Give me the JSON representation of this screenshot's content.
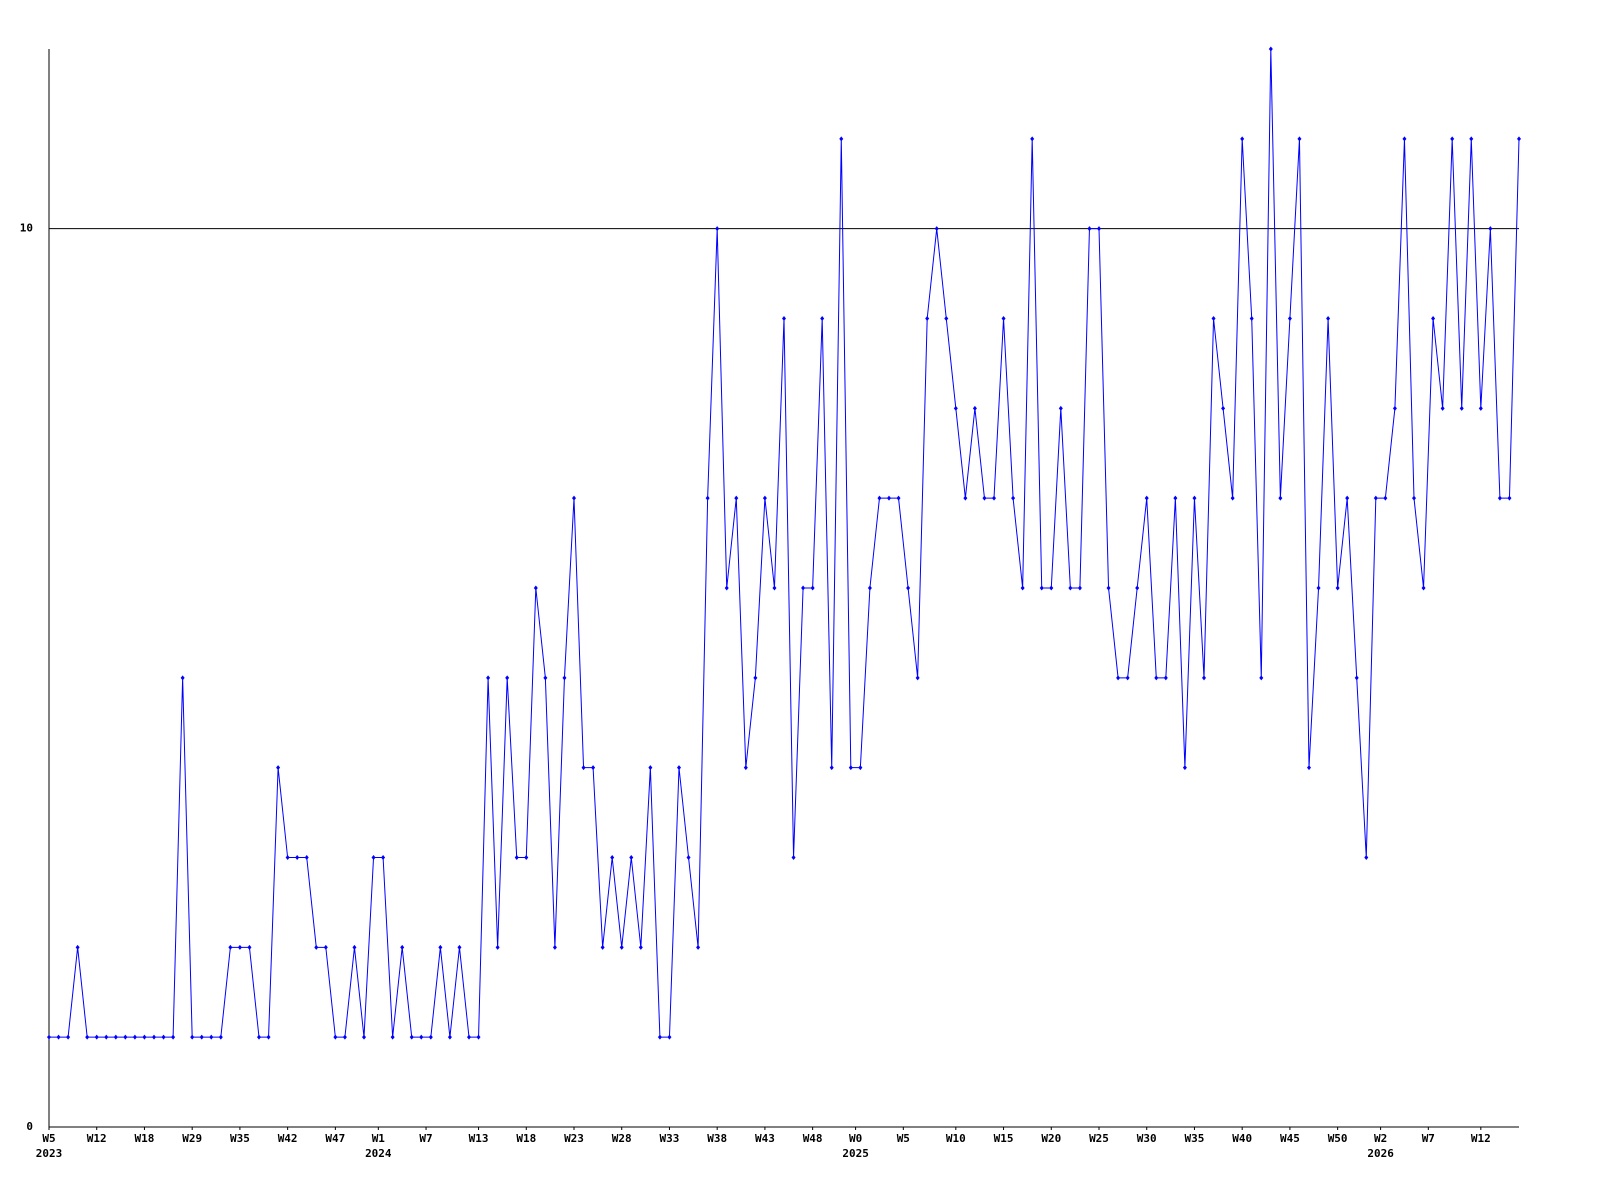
{
  "chart_data": {
    "type": "line",
    "color": "#0000ff",
    "grid": true,
    "marker": "diamond",
    "ylim": [
      0,
      12
    ],
    "yticks": [
      0,
      10
    ],
    "xlim": [
      0,
      154
    ],
    "xticks": [
      {
        "value": 0,
        "label": "W5"
      },
      {
        "value": 5,
        "label": "W12"
      },
      {
        "value": 10,
        "label": "W18"
      },
      {
        "value": 15,
        "label": "W29"
      },
      {
        "value": 20,
        "label": "W35"
      },
      {
        "value": 25,
        "label": "W42"
      },
      {
        "value": 30,
        "label": "W47"
      },
      {
        "value": 34.5,
        "label": "W1"
      },
      {
        "value": 39.5,
        "label": "W7"
      },
      {
        "value": 45,
        "label": "W13"
      },
      {
        "value": 50,
        "label": "W18"
      },
      {
        "value": 55,
        "label": "W23"
      },
      {
        "value": 60,
        "label": "W28"
      },
      {
        "value": 65,
        "label": "W33"
      },
      {
        "value": 70,
        "label": "W38"
      },
      {
        "value": 75,
        "label": "W43"
      },
      {
        "value": 80,
        "label": "W48"
      },
      {
        "value": 84.5,
        "label": "W0"
      },
      {
        "value": 89.5,
        "label": "W5"
      },
      {
        "value": 95,
        "label": "W10"
      },
      {
        "value": 100,
        "label": "W15"
      },
      {
        "value": 105,
        "label": "W20"
      },
      {
        "value": 110,
        "label": "W25"
      },
      {
        "value": 115,
        "label": "W30"
      },
      {
        "value": 120,
        "label": "W35"
      },
      {
        "value": 125,
        "label": "W40"
      },
      {
        "value": 130,
        "label": "W45"
      },
      {
        "value": 135,
        "label": "W50"
      },
      {
        "value": 139.5,
        "label": "W2"
      },
      {
        "value": 144.5,
        "label": "W7"
      },
      {
        "value": 150,
        "label": "W12"
      }
    ],
    "year_ticks": [
      {
        "value": 0,
        "label": "2023"
      },
      {
        "value": 34.5,
        "label": "2024"
      },
      {
        "value": 84.5,
        "label": "2025"
      },
      {
        "value": 139.5,
        "label": "2026"
      }
    ],
    "values": [
      1,
      1,
      1,
      2,
      1,
      1,
      1,
      1,
      1,
      1,
      1,
      1,
      1,
      1,
      5,
      1,
      1,
      1,
      1,
      2,
      2,
      2,
      1,
      1,
      4,
      3,
      3,
      3,
      2,
      2,
      1,
      1,
      2,
      1,
      3,
      3,
      1,
      2,
      1,
      1,
      1,
      2,
      1,
      2,
      1,
      1,
      5,
      2,
      5,
      3,
      3,
      6,
      5,
      2,
      5,
      7,
      4,
      4,
      2,
      3,
      2,
      3,
      2,
      4,
      1,
      1,
      4,
      3,
      2,
      7,
      10,
      6,
      7,
      4,
      5,
      7,
      6,
      9,
      3,
      6,
      6,
      9,
      4,
      11,
      4,
      4,
      6,
      7,
      7,
      7,
      6,
      5,
      9,
      10,
      9,
      8,
      7,
      8,
      7,
      7,
      9,
      7,
      6,
      11,
      6,
      6,
      8,
      6,
      6,
      10,
      10,
      6,
      5,
      5,
      6,
      7,
      5,
      5,
      7,
      4,
      7,
      5,
      9,
      8,
      7,
      11,
      9,
      5,
      12,
      7,
      9,
      11,
      4,
      6,
      9,
      6,
      7,
      5,
      3,
      7,
      7,
      8,
      11,
      7,
      6,
      9,
      8,
      11,
      8,
      11,
      8,
      10,
      7,
      7,
      11
    ]
  }
}
